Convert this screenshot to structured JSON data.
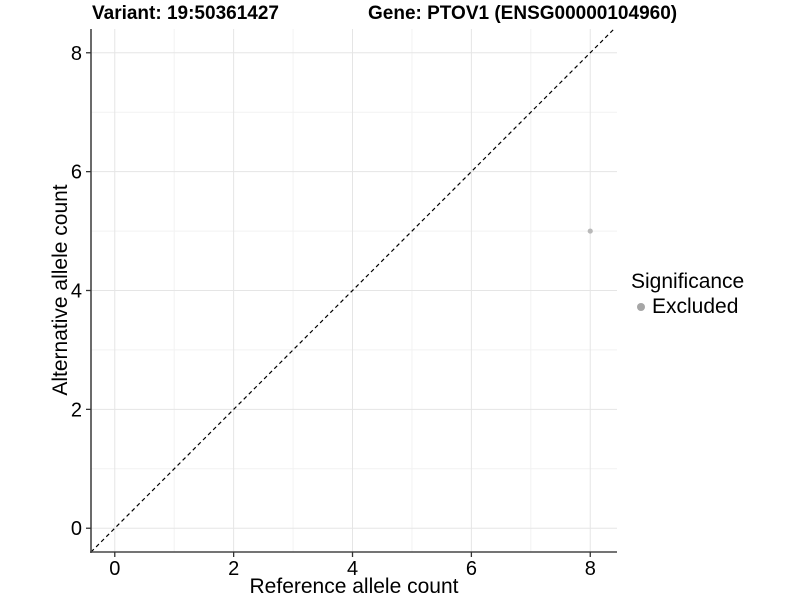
{
  "chart_data": {
    "type": "scatter",
    "titles": {
      "left": "Variant: 19:50361427",
      "right": "Gene: PTOV1 (ENSG00000104960)"
    },
    "xlabel": "Reference allele count",
    "ylabel": "Alternative allele count",
    "x_ticks": [
      0,
      2,
      4,
      6,
      8
    ],
    "y_ticks": [
      0,
      2,
      4,
      6,
      8
    ],
    "xlim": [
      -0.4,
      8.45
    ],
    "ylim": [
      -0.4,
      8.4
    ],
    "grid": {
      "major": true,
      "minor": true
    },
    "identity_line": {
      "style": "dashed",
      "x1": -0.4,
      "y1": -0.4,
      "x2": 8.4,
      "y2": 8.4,
      "color": "#000000"
    },
    "series": [
      {
        "name": "Excluded",
        "color": "#b9b9b9",
        "point_radius": 2.6,
        "points": [
          {
            "x": 8,
            "y": 5
          }
        ]
      }
    ],
    "legend": {
      "title": "Significance",
      "position": "right",
      "entries": [
        {
          "label": "Excluded",
          "color": "#a6a6a6"
        }
      ]
    },
    "colors": {
      "axis_line": "#464646",
      "tick_mark": "#333333",
      "grid_major": "#e5e5e5",
      "grid_minor": "#f2f2f2",
      "text": "#000000",
      "background": "#ffffff"
    },
    "tick_font_px": 20
  }
}
